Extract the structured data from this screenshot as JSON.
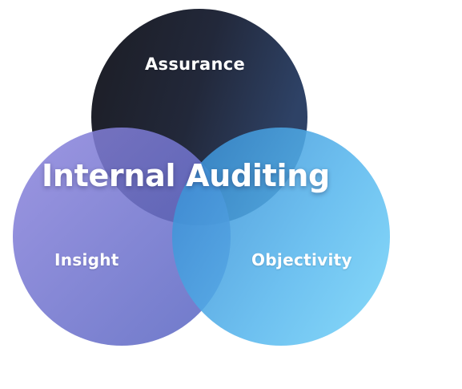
{
  "diagram": {
    "title": "Internal Auditing",
    "circles": [
      {
        "label": "Assurance",
        "color_start": "#1e1f28",
        "color_end": "#2c3d63"
      },
      {
        "label": "Insight",
        "color_start": "#8e86de",
        "color_end": "#4e5ab8"
      },
      {
        "label": "Objectivity",
        "color_start": "#3b8fd4",
        "color_end": "#6fcdf6"
      }
    ]
  }
}
